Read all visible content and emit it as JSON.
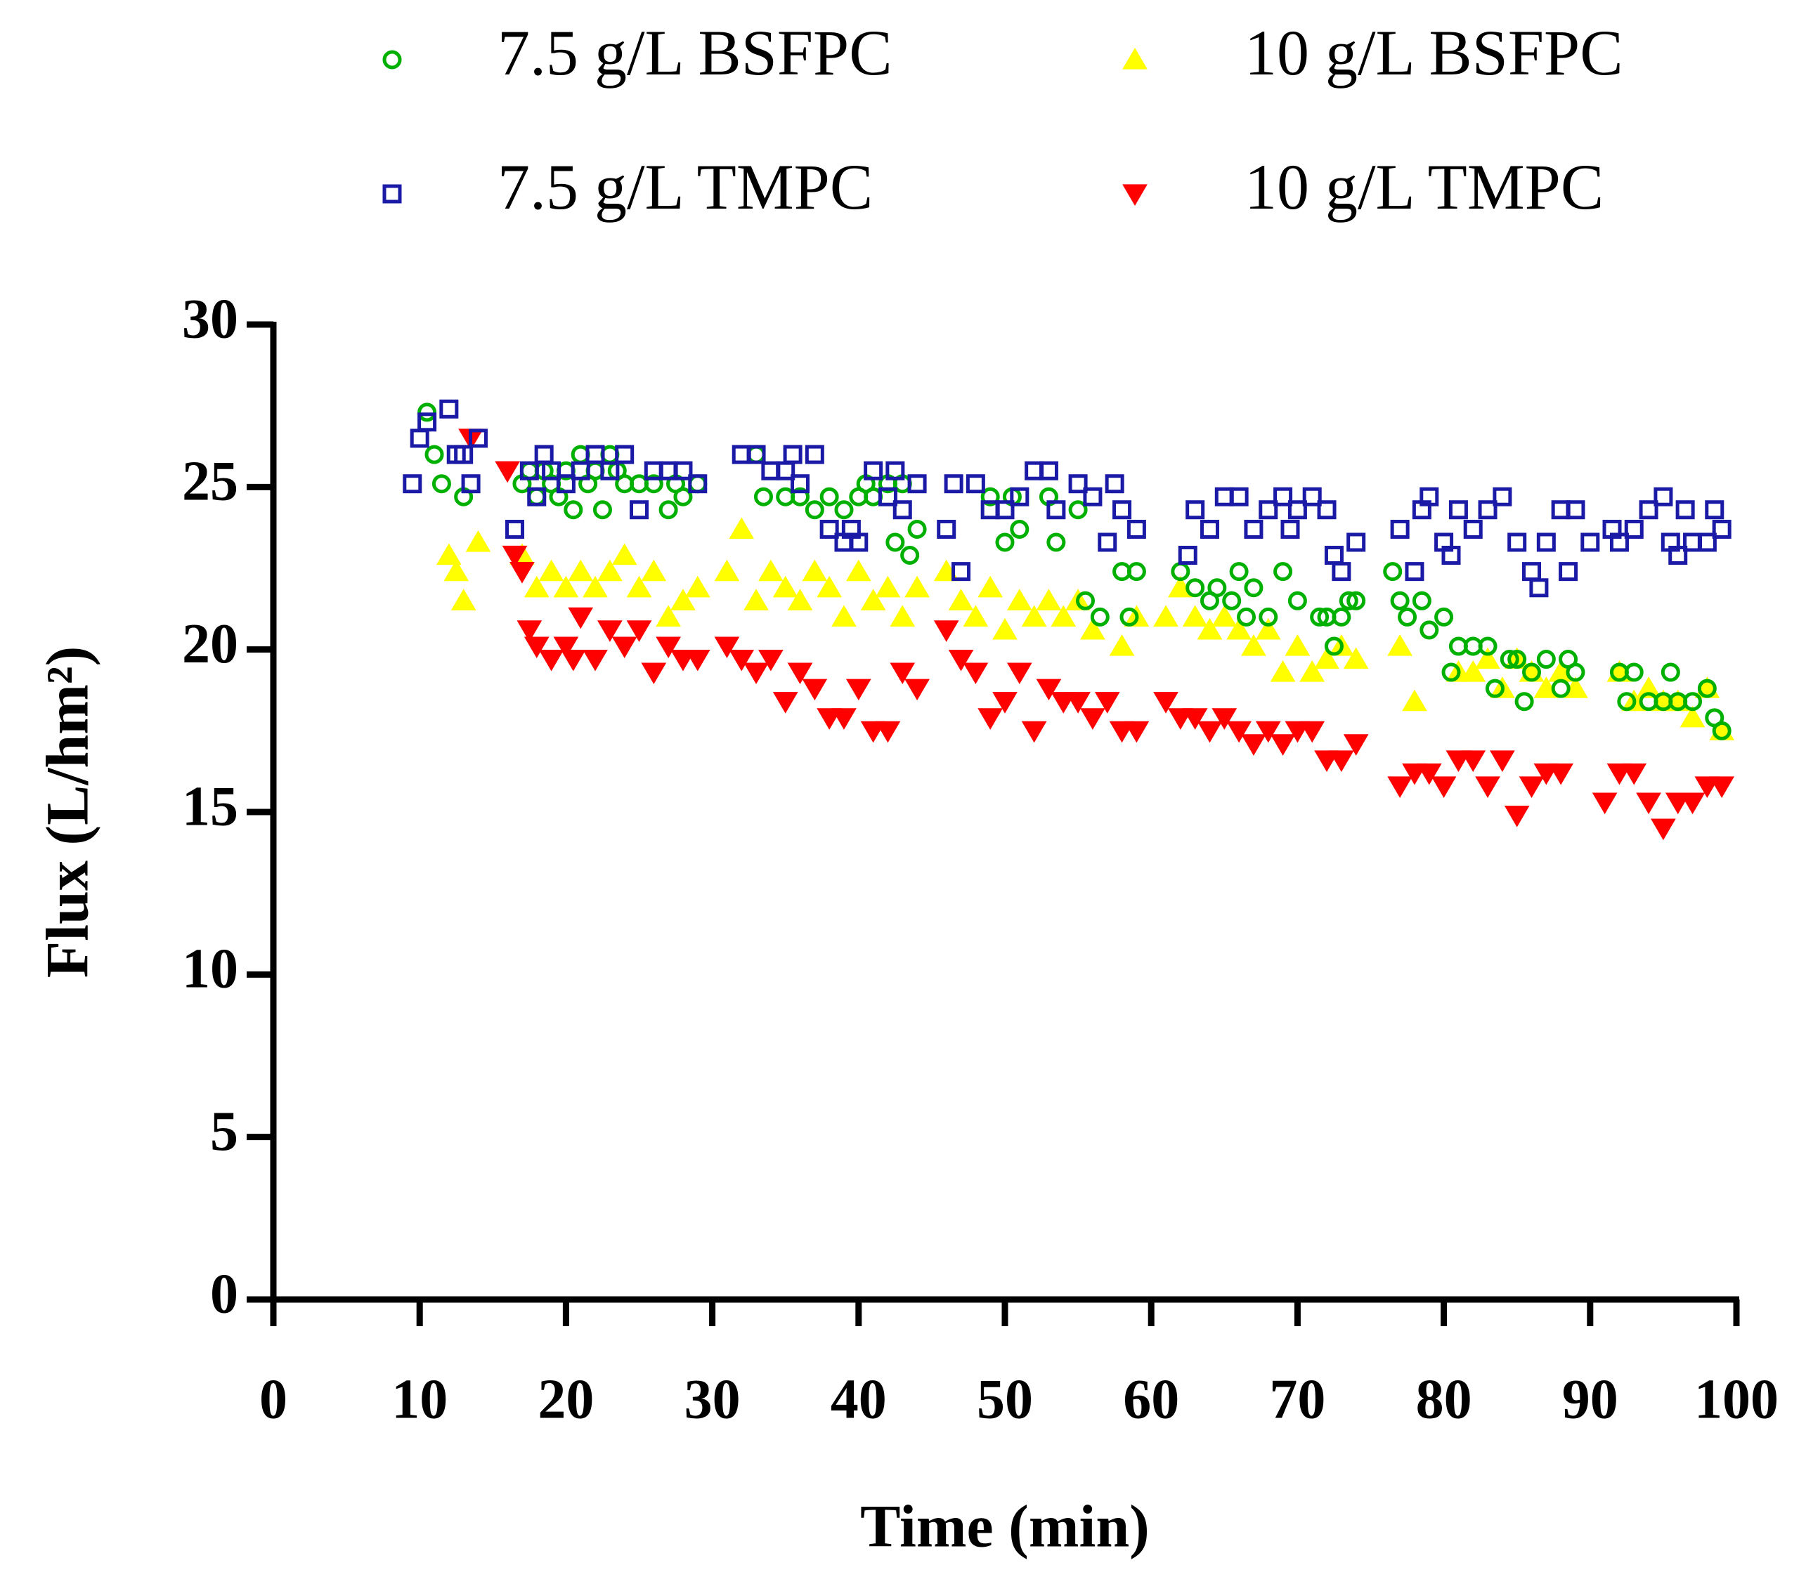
{
  "chart_data": {
    "type": "scatter",
    "x_label": "Time (min)",
    "y_label": "Flux (L/hm²)",
    "xlim": [
      0,
      100
    ],
    "xticks": [
      0,
      10,
      20,
      30,
      40,
      50,
      60,
      70,
      80,
      90,
      100
    ],
    "ylim": [
      0,
      30
    ],
    "yticks": [
      0,
      5,
      10,
      15,
      20,
      25,
      30
    ],
    "grid": false,
    "legend": "top",
    "series": [
      {
        "name": "7.5 g/L BSFPC",
        "color": "#00b000",
        "marker": "circle",
        "x": [
          10.5,
          11,
          11.5,
          13,
          17,
          17.5,
          18,
          18.5,
          19,
          19.5,
          20,
          20.5,
          21,
          21.5,
          22,
          22.5,
          23,
          23.5,
          24,
          25,
          26,
          27,
          27.5,
          28,
          29,
          33,
          33.5,
          35,
          36,
          37,
          38,
          39,
          40,
          40.5,
          41,
          42,
          42.5,
          43,
          43.5,
          44,
          49,
          50,
          50.5,
          51,
          53,
          53.5,
          55,
          55.5,
          56.5,
          58,
          58.5,
          59,
          62,
          63,
          64,
          64.5,
          65.5,
          66,
          66.5,
          67,
          68,
          69,
          70,
          71.5,
          72,
          72.5,
          73,
          73.5,
          74,
          76.5,
          77,
          77.5,
          78.5,
          79,
          80,
          80.5,
          81,
          82,
          83,
          83.5,
          84.5,
          85,
          85.5,
          86,
          87,
          88,
          88.5,
          89,
          92,
          92.5,
          93,
          94,
          95,
          95.5,
          96,
          97,
          98,
          98.5,
          99
        ],
        "values": [
          27.3,
          26,
          25.1,
          24.7,
          25.1,
          25.5,
          24.7,
          25.5,
          25.1,
          24.7,
          25.5,
          24.3,
          26,
          25.1,
          25.5,
          24.3,
          26,
          25.5,
          25.1,
          25.1,
          25.1,
          24.3,
          25.1,
          24.7,
          25.1,
          26,
          24.7,
          24.7,
          24.7,
          24.3,
          24.7,
          24.3,
          24.7,
          25.1,
          24.7,
          25.1,
          23.3,
          25.1,
          22.9,
          23.7,
          24.7,
          23.3,
          24.7,
          23.7,
          24.7,
          23.3,
          24.3,
          21.5,
          21,
          22.4,
          21,
          22.4,
          22.4,
          21.9,
          21.5,
          21.9,
          21.5,
          22.4,
          21,
          21.9,
          21,
          22.4,
          21.5,
          21,
          21,
          20.1,
          21,
          21.5,
          21.5,
          22.4,
          21.5,
          21,
          21.5,
          20.6,
          21,
          19.3,
          20.1,
          20.1,
          20.1,
          18.8,
          19.7,
          19.7,
          18.4,
          19.3,
          19.7,
          18.8,
          19.7,
          19.3,
          19.3,
          18.4,
          19.3,
          18.4,
          18.4,
          19.3,
          18.4,
          18.4,
          18.8,
          17.9,
          17.5
        ]
      },
      {
        "name": "10 g/L BSFPC",
        "color": "#ffff00",
        "marker": "triangle-up",
        "x": [
          12,
          12.5,
          13,
          14,
          17,
          18,
          19,
          20,
          21,
          22,
          23,
          24,
          25,
          26,
          27,
          28,
          29,
          31,
          32,
          33,
          34,
          35,
          36,
          37,
          38,
          39,
          40,
          41,
          42,
          43,
          44,
          46,
          47,
          48,
          49,
          50,
          51,
          52,
          53,
          54,
          55,
          56,
          58,
          59,
          61,
          62,
          63,
          64,
          65,
          66,
          67,
          68,
          69,
          70,
          71,
          72,
          73,
          74,
          77,
          78,
          81,
          82,
          83,
          84,
          85,
          86,
          87,
          88,
          89,
          92,
          93,
          94,
          95,
          96,
          97,
          98,
          99
        ],
        "values": [
          22.9,
          22.4,
          21.5,
          23.3,
          22.9,
          21.9,
          22.4,
          21.9,
          22.4,
          21.9,
          22.4,
          22.9,
          21.9,
          22.4,
          21,
          21.5,
          21.9,
          22.4,
          23.7,
          21.5,
          22.4,
          21.9,
          21.5,
          22.4,
          21.9,
          21,
          22.4,
          21.5,
          21.9,
          21,
          21.9,
          22.4,
          21.5,
          21,
          21.9,
          20.6,
          21.5,
          21,
          21.5,
          21,
          21.5,
          20.6,
          20.1,
          21,
          21,
          21.9,
          21,
          20.6,
          21,
          20.6,
          20.1,
          20.6,
          19.3,
          20.1,
          19.3,
          19.7,
          20.1,
          19.7,
          20.1,
          18.4,
          19.3,
          19.3,
          19.7,
          18.8,
          19.7,
          19.3,
          18.8,
          19.3,
          18.8,
          19.3,
          18.4,
          18.8,
          18.4,
          18.4,
          17.9,
          18.8,
          17.5
        ]
      },
      {
        "name": "7.5 g/L TMPC",
        "color": "#1a1aa6",
        "marker": "square",
        "x": [
          9.5,
          10,
          10.5,
          12,
          12.5,
          13,
          13.5,
          14,
          16.5,
          17.5,
          18,
          18.5,
          19,
          20,
          21,
          22,
          23,
          24,
          25,
          26,
          27,
          28,
          29,
          32,
          33,
          34,
          35,
          35.5,
          36,
          37,
          38,
          39,
          39.5,
          40,
          41,
          42,
          42.5,
          43,
          44,
          46,
          46.5,
          47,
          48,
          49,
          50,
          51,
          52,
          53,
          53.5,
          55,
          56,
          57,
          57.5,
          58,
          59,
          62.5,
          63,
          64,
          65,
          66,
          67,
          68,
          69,
          69.5,
          70,
          71,
          72,
          72.5,
          73,
          74,
          77,
          78,
          78.5,
          79,
          80,
          80.5,
          81,
          82,
          83,
          84,
          85,
          86,
          86.5,
          87,
          88,
          88.5,
          89,
          90,
          91.5,
          92,
          93,
          94,
          95,
          95.5,
          96,
          96.5,
          97,
          98,
          98.5,
          99
        ],
        "values": [
          25.1,
          26.5,
          27,
          27.4,
          26,
          26,
          25.1,
          26.5,
          23.7,
          25.5,
          24.7,
          26,
          25.5,
          25.1,
          25.5,
          26,
          25.5,
          26,
          24.3,
          25.5,
          25.5,
          25.5,
          25.1,
          26,
          26,
          25.5,
          25.5,
          26,
          25.1,
          26,
          23.7,
          23.3,
          23.7,
          23.3,
          25.5,
          24.7,
          25.5,
          24.3,
          25.1,
          23.7,
          25.1,
          22.4,
          25.1,
          24.3,
          24.3,
          24.7,
          25.5,
          25.5,
          24.3,
          25.1,
          24.7,
          23.3,
          25.1,
          24.3,
          23.7,
          22.9,
          24.3,
          23.7,
          24.7,
          24.7,
          23.7,
          24.3,
          24.7,
          23.7,
          24.3,
          24.7,
          24.3,
          22.9,
          22.4,
          23.3,
          23.7,
          22.4,
          24.3,
          24.7,
          23.3,
          22.9,
          24.3,
          23.7,
          24.3,
          24.7,
          23.3,
          22.4,
          21.9,
          23.3,
          24.3,
          22.4,
          24.3,
          23.3,
          23.7,
          23.3,
          23.7,
          24.3,
          24.7,
          23.3,
          22.9,
          24.3,
          23.3,
          23.3,
          24.3,
          23.7
        ]
      },
      {
        "name": "10 g/L TMPC",
        "color": "#ff0000",
        "marker": "triangle-down",
        "x": [
          13.5,
          16,
          16.5,
          17,
          17.5,
          18,
          19,
          20,
          20.5,
          21,
          22,
          23,
          24,
          25,
          26,
          27,
          28,
          29,
          31,
          32,
          33,
          34,
          35,
          36,
          37,
          38,
          39,
          40,
          41,
          42,
          43,
          44,
          46,
          47,
          48,
          49,
          50,
          51,
          52,
          53,
          54,
          55,
          56,
          57,
          58,
          59,
          61,
          62,
          63,
          64,
          65,
          66,
          67,
          68,
          69,
          70,
          71,
          72,
          73,
          74,
          77,
          78,
          79,
          80,
          81,
          82,
          83,
          84,
          85,
          86,
          87,
          88,
          91,
          92,
          93,
          94,
          95,
          96,
          97,
          98,
          99
        ],
        "values": [
          26.5,
          25.5,
          22.9,
          22.4,
          20.6,
          20.1,
          19.7,
          20.1,
          19.7,
          21,
          19.7,
          20.6,
          20.1,
          20.6,
          19.3,
          20.1,
          19.7,
          19.7,
          20.1,
          19.7,
          19.3,
          19.7,
          18.4,
          19.3,
          18.8,
          17.9,
          17.9,
          18.8,
          17.5,
          17.5,
          19.3,
          18.8,
          20.6,
          19.7,
          19.3,
          17.9,
          18.4,
          19.3,
          17.5,
          18.8,
          18.4,
          18.4,
          17.9,
          18.4,
          17.5,
          17.5,
          18.4,
          17.9,
          17.9,
          17.5,
          17.9,
          17.5,
          17.1,
          17.5,
          17.1,
          17.5,
          17.5,
          16.6,
          16.6,
          17.1,
          15.8,
          16.2,
          16.2,
          15.8,
          16.6,
          16.6,
          15.8,
          16.6,
          14.9,
          15.8,
          16.2,
          16.2,
          15.3,
          16.2,
          16.2,
          15.3,
          14.5,
          15.3,
          15.3,
          15.8,
          15.8
        ]
      }
    ]
  }
}
